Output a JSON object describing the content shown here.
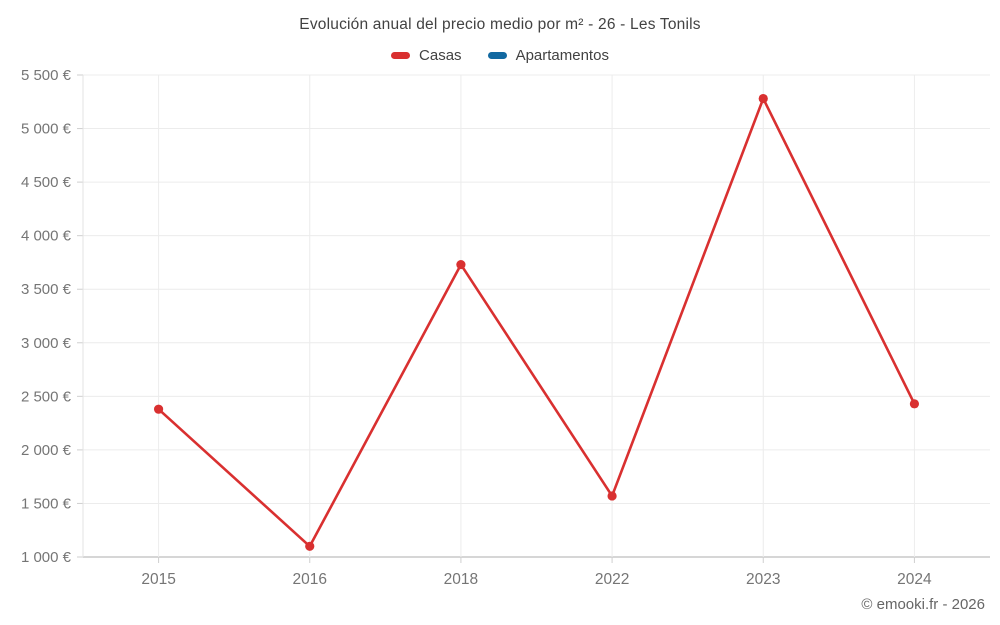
{
  "header": {
    "title": "Evolución anual del precio medio por m² - 26 - Les Tonils"
  },
  "chart_data": {
    "type": "line",
    "title": "Evolución anual del precio medio por m² - 26 - Les Tonils",
    "categories": [
      "2015",
      "2016",
      "2018",
      "2022",
      "2023",
      "2024"
    ],
    "series": [
      {
        "name": "Casas",
        "color": "#d93030",
        "values": [
          2380,
          1100,
          3730,
          1570,
          5280,
          2430
        ]
      },
      {
        "name": "Apartamentos",
        "color": "#1269a1",
        "values": []
      }
    ],
    "xlabel": "",
    "ylabel": "",
    "ylim": [
      1000,
      5500
    ],
    "y_ticks": [
      1000,
      1500,
      2000,
      2500,
      3000,
      3500,
      4000,
      4500,
      5000,
      5500
    ],
    "y_tick_labels": [
      "1 000 €",
      "1 500 €",
      "2 000 €",
      "2 500 €",
      "3 000 €",
      "3 500 €",
      "4 000 €",
      "4 500 €",
      "5 000 €",
      "5 500 €"
    ],
    "grid": true,
    "legend_position": "top",
    "currency_symbol": "€"
  },
  "colors": {
    "grid": "#ececec",
    "axis_line": "#c9c9c9",
    "tick": "#cfcfcf",
    "plot_border": "#e3e3e3",
    "tick_text": "#757575"
  },
  "footer": {
    "credit": "© emooki.fr - 2026"
  }
}
